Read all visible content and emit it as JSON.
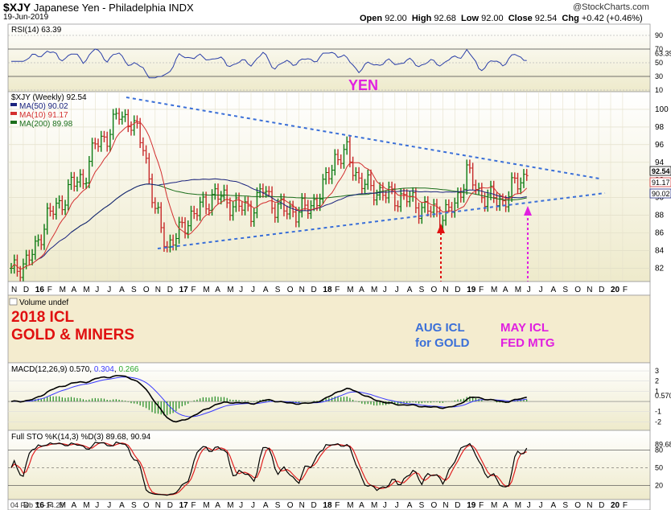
{
  "header": {
    "symbol": "$XJY",
    "name": "Japanese Yen - Philadelphia INDX",
    "date": "19-Jun-2019",
    "open_label": "Open",
    "open": "92.00",
    "high_label": "High",
    "high": "92.68",
    "low_label": "Low",
    "low": "92.00",
    "close_label": "Close",
    "close": "92.54",
    "chg_label": "Chg",
    "chg": "+0.42 (+0.46%)",
    "brand": "@StockCharts.com"
  },
  "colors": {
    "panel_bg": "#f4f0d4",
    "rsi_line": "#2b3fa8",
    "price_up": "#0c7a12",
    "ma50": "#1a237e",
    "ma10": "#d32f2f",
    "ma200": "#1b6e1b",
    "trendline": "#3a6fd8",
    "annot_blue": "#3a6fd8",
    "annot_magenta": "#e020e0",
    "annot_red": "#e01010",
    "macd": "#000000",
    "signal": "#3a3aff",
    "histogram": "#1f8a1f",
    "sto_k": "#000000",
    "sto_d": "#e02020"
  },
  "rsi_panel": {
    "label": "RSI(14) 63.39",
    "ticks": [
      "90",
      "70",
      "63.39",
      "50",
      "30",
      "10"
    ]
  },
  "price_panel": {
    "legend": [
      "$XJY (Weekly) 92.54",
      "MA(50) 90.02",
      "MA(10) 91.17",
      "MA(200) 89.98"
    ],
    "yen_label": "YEN",
    "right_labels": [
      "92.54",
      "91.17",
      "90.02"
    ]
  },
  "x_axis": [
    "N",
    "D",
    "16",
    "F",
    "M",
    "A",
    "M",
    "J",
    "J",
    "A",
    "S",
    "O",
    "N",
    "D",
    "17",
    "F",
    "M",
    "A",
    "M",
    "J",
    "J",
    "A",
    "S",
    "O",
    "N",
    "D",
    "18",
    "F",
    "M",
    "A",
    "M",
    "J",
    "J",
    "A",
    "S",
    "O",
    "N",
    "D",
    "19",
    "F",
    "M",
    "A",
    "M",
    "J",
    "J",
    "A",
    "S",
    "O",
    "N",
    "D",
    "20",
    "F"
  ],
  "volume_panel": {
    "label": "Volume undef"
  },
  "annotations": {
    "icl_2018_line1": "2018 ICL",
    "icl_2018_line2": "GOLD & MINERS",
    "aug_line1": "AUG ICL",
    "aug_line2": "for GOLD",
    "may_line1": "MAY ICL",
    "may_line2": "FED MTG"
  },
  "macd_panel": {
    "label_prefix": "MACD(12,26,9)",
    "macd_value": "0.570",
    "signal_value": "0.304",
    "hist_value": "0.266",
    "ticks": [
      "3",
      "2",
      "1",
      "0.570",
      "-1",
      "-2"
    ]
  },
  "sto_panel": {
    "label": "Full STO %K(14,3) %D(3) 89.68, 90.94",
    "ticks": [
      "89.68",
      "80",
      "50",
      "20"
    ]
  },
  "footer": {
    "note": "04 Feb Y: -14.29"
  },
  "chart_data": {
    "type": "line",
    "title": "$XJY Japanese Yen - Philadelphia INDX (Weekly)",
    "y_ticks": [
      82,
      84,
      86,
      88,
      90,
      92,
      94,
      96,
      98,
      100
    ],
    "ylim": [
      80.5,
      102
    ],
    "x_range": [
      "2015-11",
      "2020-02"
    ],
    "series": [
      {
        "name": "$XJY (Weekly)",
        "x": [
          "2015-11",
          "2015-12",
          "2016-01",
          "2016-02",
          "2016-03",
          "2016-04",
          "2016-05",
          "2016-06",
          "2016-07",
          "2016-08",
          "2016-09",
          "2016-10",
          "2016-11",
          "2016-12",
          "2017-01",
          "2017-02",
          "2017-03",
          "2017-04",
          "2017-05",
          "2017-06",
          "2017-07",
          "2017-08",
          "2017-09",
          "2017-10",
          "2017-11",
          "2017-12",
          "2018-01",
          "2018-02",
          "2018-03",
          "2018-04",
          "2018-05",
          "2018-06",
          "2018-07",
          "2018-08",
          "2018-09",
          "2018-10",
          "2018-11",
          "2018-12",
          "2019-01",
          "2019-02",
          "2019-03",
          "2019-04",
          "2019-05",
          "2019-06"
        ],
        "y": [
          81.5,
          82.5,
          84.0,
          88.0,
          89.0,
          91.5,
          92.0,
          96.0,
          97.0,
          99.5,
          98.5,
          96.0,
          88.5,
          84.5,
          86.0,
          88.0,
          89.0,
          90.5,
          89.5,
          89.0,
          88.5,
          91.0,
          89.0,
          88.5,
          88.5,
          89.0,
          91.0,
          94.5,
          95.0,
          92.0,
          91.0,
          90.5,
          90.0,
          90.0,
          89.0,
          88.5,
          88.0,
          89.0,
          93.0,
          90.5,
          90.0,
          89.5,
          91.5,
          92.5
        ]
      },
      {
        "name": "MA(10)",
        "values_ref": "10-week moving average",
        "last": 91.17
      },
      {
        "name": "MA(50)",
        "values_ref": "50-week moving average",
        "last": 90.02
      },
      {
        "name": "MA(200)",
        "values_ref": "200-week moving average",
        "last": 89.98
      }
    ],
    "rsi": {
      "last": 63.39,
      "ylim": [
        10,
        90
      ]
    },
    "macd": {
      "macd": 0.57,
      "signal": 0.304,
      "histogram": 0.266
    },
    "stochastic": {
      "k": 89.68,
      "d": 90.94,
      "ylim": [
        0,
        100
      ]
    }
  }
}
